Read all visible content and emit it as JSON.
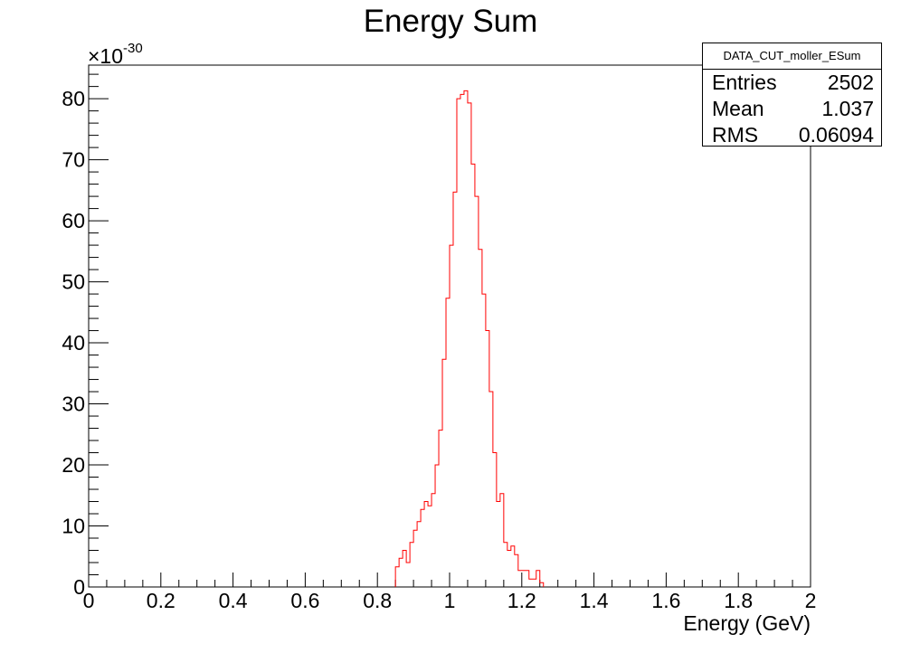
{
  "chart_data": {
    "type": "histogram",
    "title": "Energy Sum",
    "xlabel": "Energy (GeV)",
    "ylabel": "",
    "y_exponent_label": "×10",
    "y_exponent": "-30",
    "xlim": [
      0,
      2
    ],
    "ylim": [
      0,
      85.5
    ],
    "x_ticks": [
      "0",
      "0.2",
      "0.4",
      "0.6",
      "0.8",
      "1",
      "1.2",
      "1.4",
      "1.6",
      "1.8",
      "2"
    ],
    "y_ticks": [
      "0",
      "10",
      "20",
      "30",
      "40",
      "50",
      "60",
      "70",
      "80"
    ],
    "grid": false,
    "bin_width": 0.01,
    "x_start": 0.85,
    "values": [
      3.3,
      4.7,
      6.0,
      4.0,
      7.3,
      9.3,
      10.7,
      12.7,
      14.0,
      13.3,
      15.3,
      20.0,
      25.7,
      37.3,
      47.3,
      56.0,
      64.7,
      80.0,
      80.7,
      81.3,
      79.3,
      69.3,
      64.0,
      55.3,
      48.0,
      42.0,
      32.0,
      22.0,
      14.0,
      15.3,
      7.3,
      6.0,
      6.7,
      5.3,
      2.7,
      2.7,
      2.7,
      1.3,
      1.3,
      2.7,
      0.7
    ],
    "color": "#ff0000"
  },
  "stats_box": {
    "name": "DATA_CUT_moller_ESum",
    "entries_label": "Entries",
    "entries": "2502",
    "mean_label": "Mean",
    "mean": "1.037",
    "rms_label": "RMS",
    "rms": "0.06094"
  }
}
